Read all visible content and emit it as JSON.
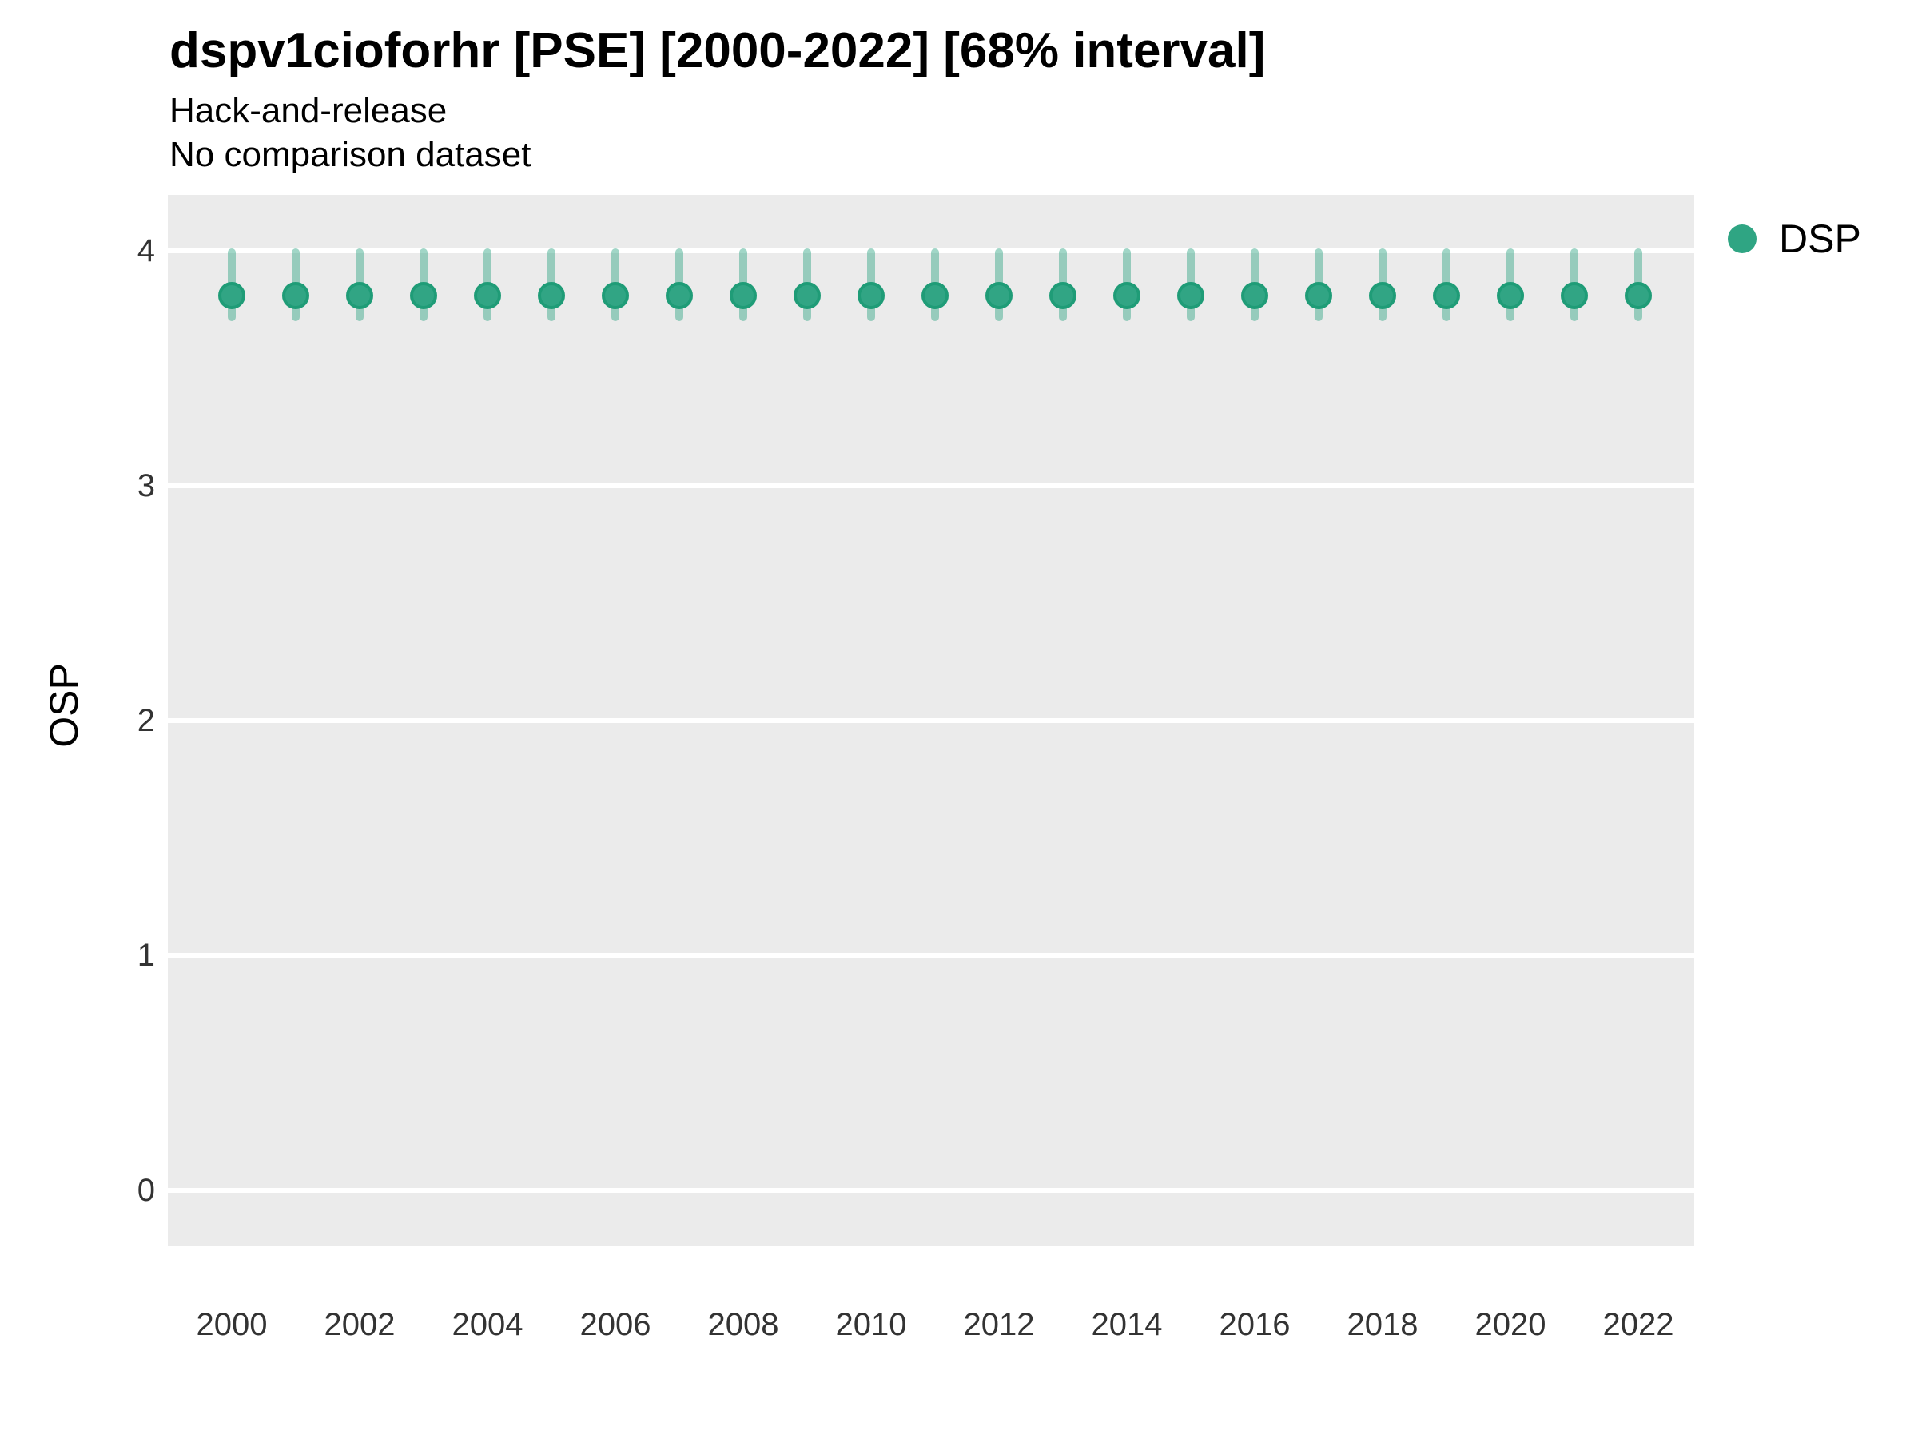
{
  "header": {
    "title": "dspv1cioforhr [PSE] [2000-2022] [68% interval]",
    "subtitle_line1": "Hack-and-release",
    "subtitle_line2": "No comparison dataset"
  },
  "legend": {
    "position": "right",
    "items": [
      {
        "label": "DSP",
        "color": "#2FA583"
      }
    ]
  },
  "colors": {
    "background": "#FFFFFF",
    "panel_background": "#EBEBEB",
    "gridline": "#FFFFFF",
    "point_fill": "#31A584",
    "point_stroke": "#1F9C77",
    "interval_bar": "rgba(47,165,131,0.45)",
    "tick_text": "#333333",
    "title_text": "#000000"
  },
  "chart_data": {
    "type": "scatter",
    "subtype": "pointrange",
    "title": "dspv1cioforhr [PSE] [2000-2022] [68% interval]",
    "subtitle": [
      "Hack-and-release",
      "No comparison dataset"
    ],
    "interval_level": "68%",
    "xlabel": "",
    "ylabel": "OSP",
    "xlim": [
      1999,
      2023
    ],
    "ylim": [
      -0.24,
      4.24
    ],
    "yticks": [
      0,
      1,
      2,
      3,
      4
    ],
    "xticks": [
      2000,
      2002,
      2004,
      2006,
      2008,
      2010,
      2012,
      2014,
      2016,
      2018,
      2020,
      2022
    ],
    "grid": "horizontal-major-only",
    "legend_position": "right",
    "series": [
      {
        "name": "DSP",
        "x": [
          2000,
          2001,
          2002,
          2003,
          2004,
          2005,
          2006,
          2007,
          2008,
          2009,
          2010,
          2011,
          2012,
          2013,
          2014,
          2015,
          2016,
          2017,
          2018,
          2019,
          2020,
          2021,
          2022
        ],
        "y": [
          3.81,
          3.81,
          3.81,
          3.81,
          3.81,
          3.81,
          3.81,
          3.81,
          3.81,
          3.81,
          3.81,
          3.81,
          3.81,
          3.81,
          3.81,
          3.81,
          3.81,
          3.81,
          3.81,
          3.81,
          3.81,
          3.81,
          3.81
        ],
        "lo": [
          3.7,
          3.7,
          3.7,
          3.7,
          3.7,
          3.7,
          3.7,
          3.7,
          3.7,
          3.7,
          3.7,
          3.7,
          3.7,
          3.7,
          3.7,
          3.7,
          3.7,
          3.7,
          3.7,
          3.7,
          3.7,
          3.7,
          3.7
        ],
        "hi": [
          4.01,
          4.01,
          4.01,
          4.01,
          4.01,
          4.01,
          4.01,
          4.01,
          4.01,
          4.01,
          4.01,
          4.01,
          4.01,
          4.01,
          4.01,
          4.01,
          4.01,
          4.01,
          4.01,
          4.01,
          4.01,
          4.01,
          4.01
        ]
      }
    ]
  }
}
